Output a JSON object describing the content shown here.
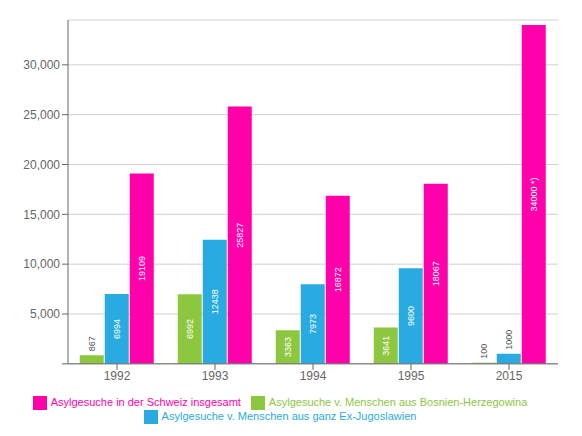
{
  "chart_data": {
    "type": "bar",
    "categories": [
      "1992",
      "1993",
      "1994",
      "1995",
      "2015"
    ],
    "series": [
      {
        "name": "Asylgesuche v. Menschen aus Bosnien-Herzegowina",
        "color": "#8dc63f",
        "values": [
          867,
          6992,
          3363,
          3641,
          100
        ],
        "value_labels": [
          "867",
          "6992",
          "3363",
          "3641",
          "100"
        ]
      },
      {
        "name": "Asylgesuche v. Menschen aus ganz Ex-Jugoslawien",
        "color": "#29abe2",
        "values": [
          6994,
          12438,
          7973,
          9600,
          1000
        ],
        "value_labels": [
          "6994",
          "12438",
          "7973",
          "9600",
          "1000"
        ]
      },
      {
        "name": "Asylgesuche in der Schweiz insgesamt",
        "color": "#ff00aa",
        "values": [
          19109,
          25827,
          16872,
          18067,
          34000
        ],
        "value_labels": [
          "19109",
          "25827",
          "16872",
          "18067",
          "34000 *)"
        ]
      }
    ],
    "ylim": [
      0,
      34500
    ],
    "yticks": [
      {
        "value": 0,
        "label": ""
      },
      {
        "value": 5000,
        "label": "5,000"
      },
      {
        "value": 10000,
        "label": "10,000"
      },
      {
        "value": 15000,
        "label": "15,000"
      },
      {
        "value": 20000,
        "label": "20,000"
      },
      {
        "value": 25000,
        "label": "25,000"
      },
      {
        "value": 30000,
        "label": "30,000"
      }
    ],
    "grid": true,
    "legend": "bottom",
    "data_labels": true
  }
}
